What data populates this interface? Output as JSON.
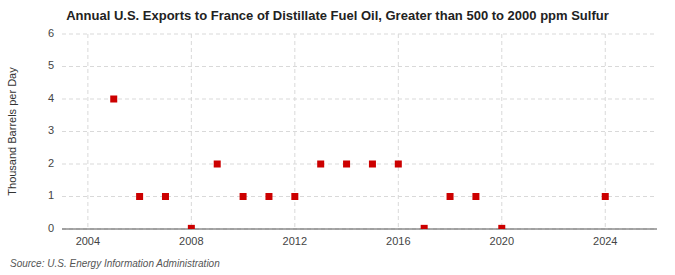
{
  "chart_data": {
    "type": "scatter",
    "title": "Annual U.S. Exports to France of Distillate Fuel Oil, Greater than 500 to 2000 ppm Sulfur",
    "ylabel": "Thousand Barrels per Day",
    "source": "Source: U.S. Energy Information Administration",
    "x": [
      2005,
      2006,
      2007,
      2008,
      2009,
      2010,
      2011,
      2012,
      2013,
      2014,
      2015,
      2016,
      2017,
      2018,
      2019,
      2020,
      2024
    ],
    "values": [
      4,
      1,
      1,
      0.02,
      2,
      1,
      1,
      1,
      2,
      2,
      2,
      2,
      0.02,
      1,
      1,
      0.02,
      1
    ],
    "color": "#cc0000",
    "marker": "square",
    "xlim": [
      2003,
      2026
    ],
    "ylim": [
      0,
      6
    ],
    "xticks": [
      2004,
      2008,
      2012,
      2016,
      2020,
      2024
    ],
    "yticks": [
      0,
      1,
      2,
      3,
      4,
      5,
      6
    ],
    "grid": true
  }
}
